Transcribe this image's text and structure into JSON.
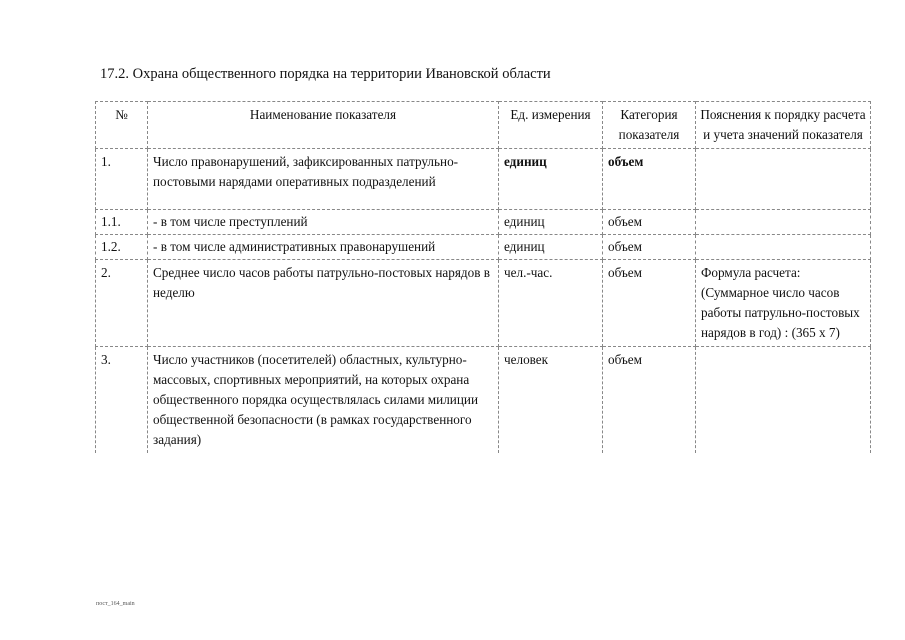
{
  "title": "17.2. Охрана общественного порядка на территории Ивановской области",
  "table": {
    "headers": [
      "№",
      "Наименование показателя",
      "Ед. измерения",
      "Категория показателя",
      "Пояснения к порядку расчета и учета значений показателя"
    ],
    "rows": [
      {
        "num": "1.",
        "name": "Число правонарушений, зафиксированных патрульно-постовыми нарядами оперативных подразделений",
        "unit": "единиц",
        "category": "объем",
        "note": ""
      },
      {
        "num": "1.1.",
        "name": "- в том числе преступлений",
        "unit": "единиц",
        "category": "объем",
        "note": ""
      },
      {
        "num": "1.2.",
        "name": "- в том числе административных правонарушений",
        "unit": "единиц",
        "category": "объем",
        "note": ""
      },
      {
        "num": "2.",
        "name": "Среднее число часов работы патрульно-постовых нарядов в неделю",
        "unit": "чел.-час.",
        "category": "объем",
        "note": "Формула расчета: (Суммарное число часов работы патрульно-постовых нарядов в год) : (365 х 7)"
      },
      {
        "num": "3.",
        "name": "Число участников (посетителей) областных, культурно-массовых, спортивных мероприятий, на которых охрана общественного порядка осуществлялась силами милиции общественной безопасности (в рамках государственного задания)",
        "unit": "человек",
        "category": "объем",
        "note": ""
      }
    ]
  },
  "footer": "пост_164_main"
}
